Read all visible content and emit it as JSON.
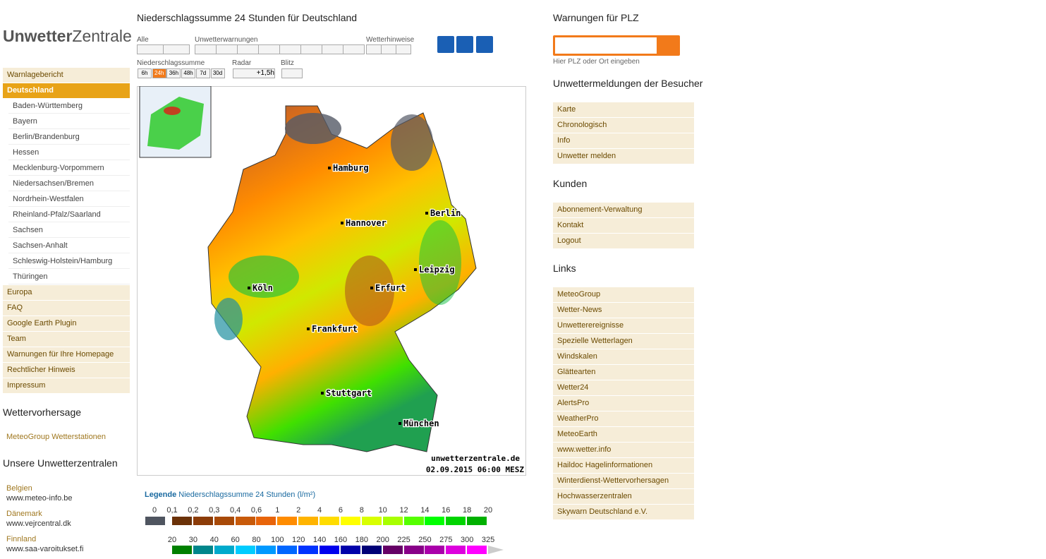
{
  "logo": {
    "bold": "Unwetter",
    "light": "Zentrale"
  },
  "nav": [
    {
      "label": "Warnlagebericht"
    },
    {
      "label": "Deutschland",
      "active": true,
      "children": [
        "Baden-Württemberg",
        "Bayern",
        "Berlin/Brandenburg",
        "Hessen",
        "Mecklenburg-Vorpommern",
        "Niedersachsen/Bremen",
        "Nordrhein-Westfalen",
        "Rheinland-Pfalz/Saarland",
        "Sachsen",
        "Sachsen-Anhalt",
        "Schleswig-Holstein/Hamburg",
        "Thüringen"
      ]
    },
    {
      "label": "Europa"
    },
    {
      "label": "FAQ"
    },
    {
      "label": "Google Earth Plugin"
    },
    {
      "label": "Team"
    },
    {
      "label": "Warnungen für Ihre Homepage"
    },
    {
      "label": "Rechtlicher Hinweis"
    },
    {
      "label": "Impressum"
    }
  ],
  "forecast": {
    "heading": "Wettervorhersage",
    "links": [
      "MeteoGroup Wetterstationen"
    ]
  },
  "centrals": {
    "heading": "Unsere Unwetterzentralen",
    "items": [
      {
        "country": "Belgien",
        "url": "www.meteo-info.be"
      },
      {
        "country": "Dänemark",
        "url": "www.vejrcentral.dk"
      },
      {
        "country": "Finnland",
        "url": "www.saa-varoitukset.fi"
      }
    ]
  },
  "main": {
    "title": "Niederschlagssumme 24 Stunden für Deutschland",
    "filter_labels": [
      "Alle",
      "Unwetterwarnungen",
      "Wetterhinweise"
    ],
    "period_label": "Niederschlagssumme",
    "periods": [
      "6h",
      "24h",
      "36h",
      "48h",
      "7d",
      "30d"
    ],
    "active_period": 1,
    "radar_label": "Radar",
    "radar_button": "+1,5h",
    "lightning_label": "Blitz"
  },
  "map": {
    "cities": [
      "Hamburg",
      "Berlin",
      "Hannover",
      "Leipzig",
      "Köln",
      "Erfurt",
      "Frankfurt",
      "Stuttgart",
      "München"
    ],
    "watermark": "unwetterzentrale.de",
    "timestamp": "02.09.2015 06:00 MESZ"
  },
  "legend": {
    "title": "Legende",
    "subtitle": "Niederschlagssumme 24 Stunden",
    "unit": "(l/m²)",
    "rows": [
      {
        "labels": [
          "0",
          "0,1",
          "0,2",
          "0,3",
          "0,4",
          "0,6",
          "1",
          "2",
          "4",
          "6",
          "8",
          "10",
          "12",
          "14",
          "16",
          "18",
          "20"
        ],
        "colors": [
          "#4f5560",
          "#6b3208",
          "#8c3c08",
          "#a84a08",
          "#c85a0a",
          "#e8640a",
          "#ff8c00",
          "#ffb400",
          "#ffdc00",
          "#ffff00",
          "#d8ff00",
          "#a8ff00",
          "#55ff00",
          "#00ff00",
          "#00d400",
          "#00b000"
        ]
      },
      {
        "labels": [
          "20",
          "30",
          "40",
          "60",
          "80",
          "100",
          "120",
          "140",
          "160",
          "180",
          "200",
          "225",
          "250",
          "275",
          "300",
          "325"
        ],
        "colors": [
          "#008000",
          "#00868b",
          "#00aacc",
          "#00ccff",
          "#0099ff",
          "#0066ff",
          "#0033ff",
          "#0000ee",
          "#0000aa",
          "#000077",
          "#660066",
          "#880088",
          "#aa00aa",
          "#dd00dd",
          "#ff00ff"
        ]
      }
    ]
  },
  "sidebar": {
    "plz": {
      "heading": "Warnungen für PLZ",
      "placeholder": "Hier PLZ oder Ort eingeben"
    },
    "sections": [
      {
        "heading": "Unwettermeldungen der Besucher",
        "items": [
          "Karte",
          "Chronologisch",
          "Info",
          "Unwetter melden"
        ]
      },
      {
        "heading": "Kunden",
        "items": [
          "Abonnement-Verwaltung",
          "Kontakt",
          "Logout"
        ]
      },
      {
        "heading": "Links",
        "items": [
          "MeteoGroup",
          "Wetter-News",
          "Unwetterereignisse",
          "Spezielle Wetterlagen",
          "Windskalen",
          "Glättearten",
          "Wetter24",
          "AlertsPro",
          "WeatherPro",
          "MeteoEarth",
          "www.wetter.info",
          "Haildoc Hagelinformationen",
          "Winterdienst-Wettervorhersagen",
          "Hochwasserzentralen",
          "Skywarn Deutschland e.V."
        ]
      }
    ]
  }
}
